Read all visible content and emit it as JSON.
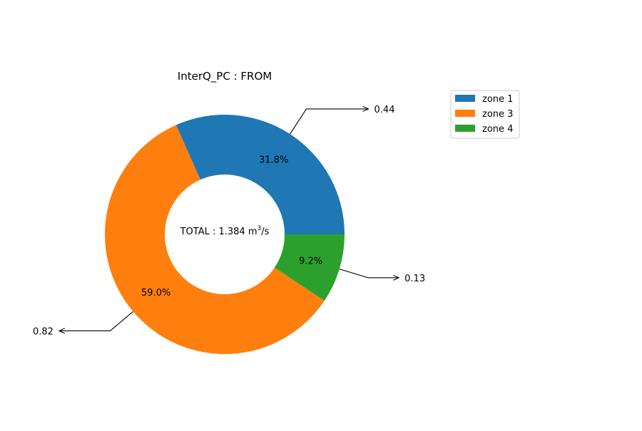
{
  "chart_data": {
    "type": "pie",
    "title": "InterQ_PC : FROM",
    "donut": true,
    "center_label": {
      "prefix": "TOTAL : 1.384 m",
      "superscript": "3",
      "suffix": "/s"
    },
    "slices": [
      {
        "label": "zone 1",
        "value": 0.44,
        "value_label": "0.44",
        "percent_label": "31.8%",
        "color": "#1f77b4"
      },
      {
        "label": "zone 3",
        "value": 0.82,
        "value_label": "0.82",
        "percent_label": "59.0%",
        "color": "#ff7f0e"
      },
      {
        "label": "zone 4",
        "value": 0.13,
        "value_label": "0.13",
        "percent_label": "9.2%",
        "color": "#2ca02c"
      }
    ],
    "legend": {
      "position": "top-right",
      "entries": [
        "zone 1",
        "zone 3",
        "zone 4"
      ]
    }
  }
}
